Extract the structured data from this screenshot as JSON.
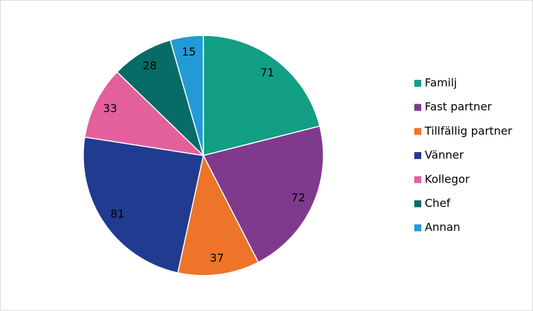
{
  "chart_data": {
    "type": "pie",
    "categories": [
      "Familj",
      "Fast partner",
      "Tillfällig partner",
      "Vänner",
      "Kollegor",
      "Chef",
      "Annan"
    ],
    "values": [
      71,
      72,
      37,
      81,
      33,
      28,
      15
    ],
    "colors": [
      "#129f84",
      "#7f3a8e",
      "#ee7429",
      "#203b8f",
      "#e4609c",
      "#076b66",
      "#229ad6"
    ],
    "legend": "right"
  }
}
